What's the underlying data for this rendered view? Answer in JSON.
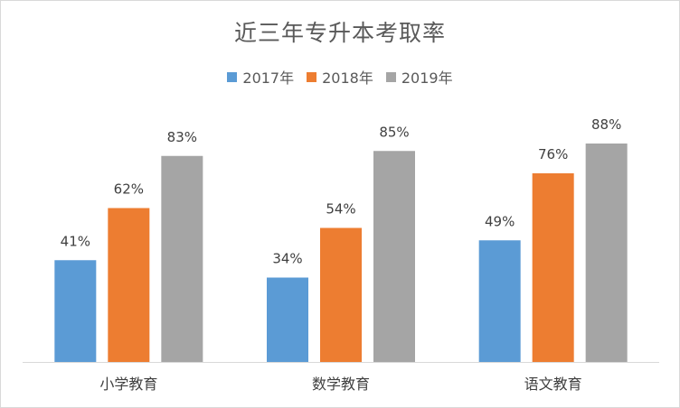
{
  "chart_data": {
    "type": "bar",
    "title": "近三年专升本考取率",
    "categories": [
      "小学教育",
      "数学教育",
      "语文教育"
    ],
    "series": [
      {
        "name": "2017年",
        "color": "#5B9BD5",
        "values": [
          41,
          34,
          49
        ],
        "labels": [
          "41%",
          "34%",
          "49%"
        ]
      },
      {
        "name": "2018年",
        "color": "#ED7D31",
        "values": [
          62,
          54,
          76
        ],
        "labels": [
          "62%",
          "54%",
          "76%"
        ]
      },
      {
        "name": "2019年",
        "color": "#A5A5A5",
        "values": [
          83,
          85,
          88
        ],
        "labels": [
          "83%",
          "85%",
          "88%"
        ]
      }
    ],
    "ylim": [
      0,
      100
    ],
    "xlabel": "",
    "ylabel": "",
    "grid": false,
    "legend_position": "top"
  }
}
